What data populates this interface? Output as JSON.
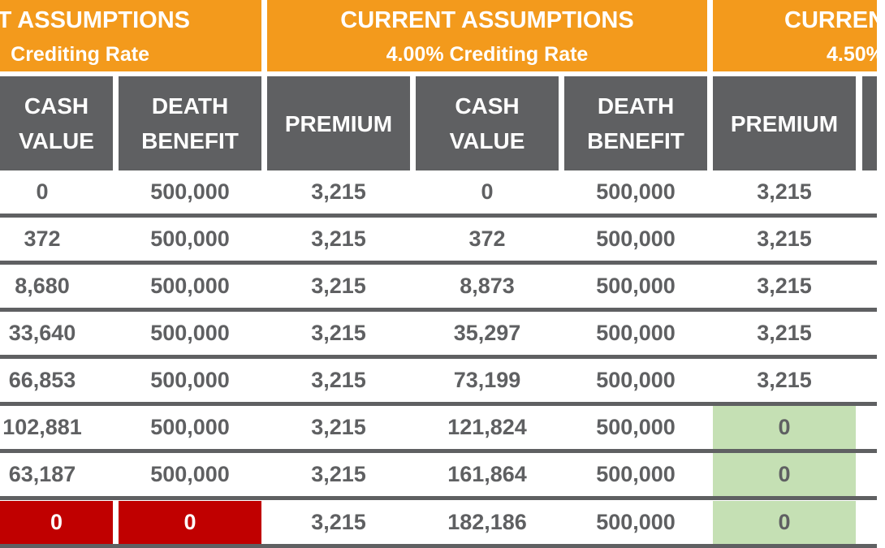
{
  "groups": [
    {
      "title": "T ASSUMPTIONS",
      "subtitle": "Crediting Rate"
    },
    {
      "title": "CURRENT ASSUMPTIONS",
      "subtitle": "4.00% Crediting Rate"
    },
    {
      "title": "CURREN",
      "subtitle": "4.50%"
    }
  ],
  "columns": [
    "CASH\nVALUE",
    "DEATH\nBENEFIT",
    "PREMIUM",
    "CASH\nVALUE",
    "DEATH\nBENEFIT",
    "PREMIUM"
  ],
  "rows": [
    [
      "0",
      "500,000",
      "3,215",
      "0",
      "500,000",
      "3,215"
    ],
    [
      "372",
      "500,000",
      "3,215",
      "372",
      "500,000",
      "3,215"
    ],
    [
      "8,680",
      "500,000",
      "3,215",
      "8,873",
      "500,000",
      "3,215"
    ],
    [
      "33,640",
      "500,000",
      "3,215",
      "35,297",
      "500,000",
      "3,215"
    ],
    [
      "66,853",
      "500,000",
      "3,215",
      "73,199",
      "500,000",
      "3,215"
    ],
    [
      "102,881",
      "500,000",
      "3,215",
      "121,824",
      "500,000",
      "0"
    ],
    [
      "63,187",
      "500,000",
      "3,215",
      "161,864",
      "500,000",
      "0"
    ],
    [
      "0",
      "0",
      "3,215",
      "182,186",
      "500,000",
      "0"
    ]
  ],
  "highlights": {
    "green_cells": [
      [
        5,
        5
      ],
      [
        6,
        5
      ],
      [
        7,
        5
      ]
    ],
    "red_cells": [
      [
        7,
        0
      ],
      [
        7,
        1
      ]
    ],
    "colors": {
      "orange": "#f39a1c",
      "header_gray": "#5f6062",
      "green": "#c5e0b4",
      "red": "#c00000"
    }
  }
}
